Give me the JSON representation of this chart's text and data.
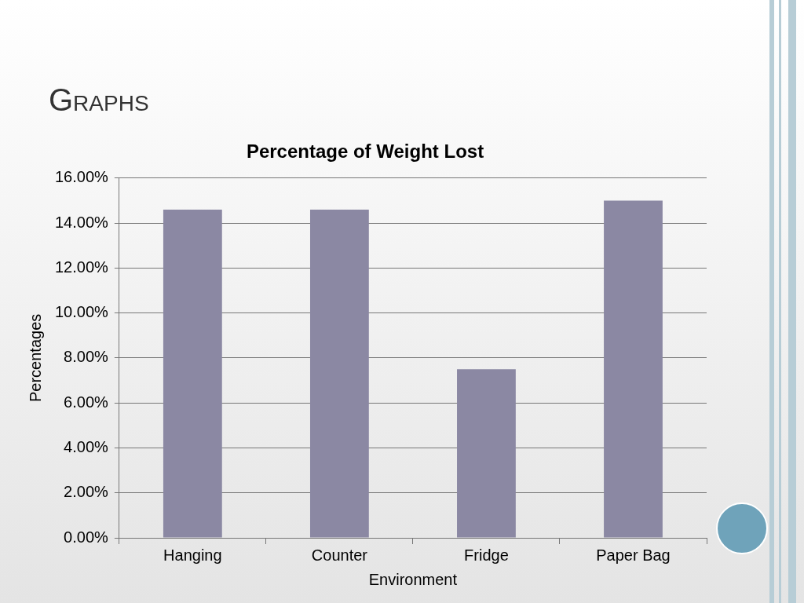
{
  "chart_data": {
    "type": "bar",
    "title": "Percentage of Weight Lost",
    "xlabel": "Environment",
    "ylabel": "Percentages",
    "annotations": [
      "Graphs"
    ],
    "categories": [
      "Hanging",
      "Counter",
      "Fridge",
      "Paper Bag"
    ],
    "values": [
      14.6,
      14.6,
      7.5,
      15.0
    ],
    "color": "#8b88a3",
    "ylim": [
      0,
      16
    ],
    "yticks": [
      {
        "value": 0,
        "label": "0.00%"
      },
      {
        "value": 2,
        "label": "2.00%"
      },
      {
        "value": 4,
        "label": "4.00%"
      },
      {
        "value": 6,
        "label": "6.00%"
      },
      {
        "value": 8,
        "label": "8.00%"
      },
      {
        "value": 10,
        "label": "10.00%"
      },
      {
        "value": 12,
        "label": "12.00%"
      },
      {
        "value": 14,
        "label": "14.00%"
      },
      {
        "value": 16,
        "label": "16.00%"
      }
    ],
    "grid": "y",
    "legend": false
  }
}
